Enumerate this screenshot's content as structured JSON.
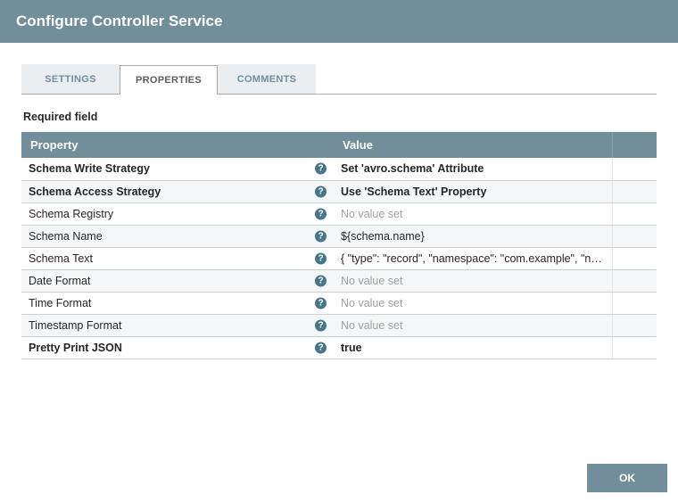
{
  "dialog": {
    "title": "Configure Controller Service"
  },
  "tabs": [
    {
      "label": "SETTINGS",
      "active": false
    },
    {
      "label": "PROPERTIES",
      "active": true
    },
    {
      "label": "COMMENTS",
      "active": false
    }
  ],
  "requiredLabel": "Required field",
  "tableHeaders": {
    "property": "Property",
    "value": "Value"
  },
  "properties": [
    {
      "name": "Schema Write Strategy",
      "value": "Set 'avro.schema' Attribute",
      "required": true,
      "unset": false
    },
    {
      "name": "Schema Access Strategy",
      "value": "Use 'Schema Text' Property",
      "required": true,
      "unset": false
    },
    {
      "name": "Schema Registry",
      "value": "No value set",
      "required": false,
      "unset": true
    },
    {
      "name": "Schema Name",
      "value": "${schema.name}",
      "required": false,
      "unset": false
    },
    {
      "name": "Schema Text",
      "value": "{ \"type\": \"record\", \"namespace\": \"com.example\", \"name\": \"...",
      "required": false,
      "unset": false
    },
    {
      "name": "Date Format",
      "value": "No value set",
      "required": false,
      "unset": true
    },
    {
      "name": "Time Format",
      "value": "No value set",
      "required": false,
      "unset": true
    },
    {
      "name": "Timestamp Format",
      "value": "No value set",
      "required": false,
      "unset": true
    },
    {
      "name": "Pretty Print JSON",
      "value": "true",
      "required": true,
      "unset": false
    }
  ],
  "buttons": {
    "ok": "OK"
  },
  "helpGlyph": "?",
  "colors": {
    "primary": "#728e9b",
    "rowAlt": "#f4f6f7",
    "border": "#c7d2d7",
    "unsetText": "#a1a1a1"
  }
}
